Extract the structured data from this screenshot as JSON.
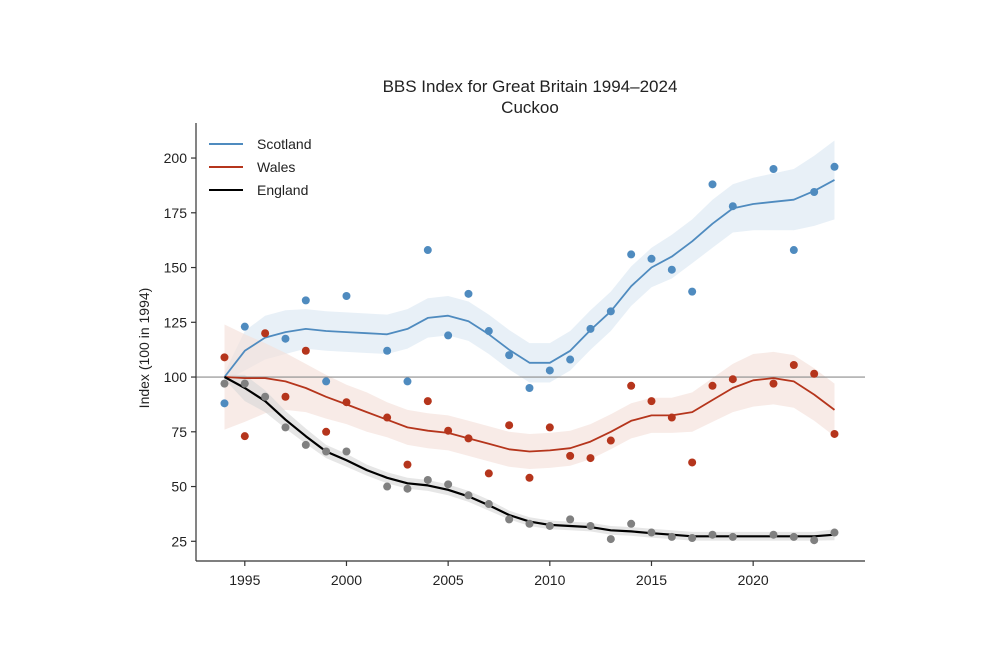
{
  "chart_data": {
    "type": "line",
    "title": "BBS Index for Great Britain 1994–2024",
    "subtitle": "Cuckoo",
    "xlabel": "",
    "ylabel": "Index (100 in 1994)",
    "xlim": [
      1992.6,
      2025.5
    ],
    "ylim": [
      16,
      216
    ],
    "xticks": [
      1995,
      2000,
      2005,
      2010,
      2015,
      2020
    ],
    "yticks": [
      25,
      50,
      75,
      100,
      125,
      150,
      175,
      200
    ],
    "reference_line": 100,
    "grid": false,
    "legend_position": "top-left",
    "x": [
      1994,
      1995,
      1996,
      1997,
      1998,
      1999,
      2000,
      2001,
      2002,
      2003,
      2004,
      2005,
      2006,
      2007,
      2008,
      2009,
      2010,
      2011,
      2012,
      2013,
      2014,
      2015,
      2016,
      2017,
      2018,
      2019,
      2020,
      2021,
      2022,
      2023,
      2024
    ],
    "series": [
      {
        "name": "Scotland",
        "color": "#4f8bbf",
        "band_color": "#dce8f3",
        "trend": [
          100,
          112,
          118,
          120.5,
          122,
          121,
          120.5,
          120,
          119.5,
          122,
          127,
          128,
          125.5,
          119.5,
          112.5,
          106.5,
          106.5,
          112,
          121.5,
          130,
          141.5,
          150,
          155,
          162,
          170,
          177,
          179,
          180,
          181,
          185,
          190
        ],
        "ci_halfwidth": [
          2,
          9,
          10,
          10,
          9,
          9,
          9,
          9,
          9,
          9,
          9,
          9,
          9,
          9,
          9,
          9,
          9,
          9,
          9,
          9,
          9,
          9,
          10,
          10,
          11,
          11,
          12,
          13,
          14,
          16,
          18
        ],
        "points": {
          "years": [
            1994,
            1995,
            1997,
            1998,
            1999,
            2000,
            2002,
            2003,
            2004,
            2005,
            2006,
            2007,
            2008,
            2009,
            2010,
            2011,
            2012,
            2013,
            2014,
            2015,
            2016,
            2017,
            2018,
            2019,
            2021,
            2022,
            2023,
            2024
          ],
          "values": [
            88,
            123,
            117.5,
            135,
            98,
            137,
            112,
            98,
            158,
            119,
            138,
            121,
            110,
            95,
            103,
            108,
            122,
            130,
            156,
            154,
            149,
            139,
            188,
            178,
            195,
            158,
            184.5,
            196
          ]
        }
      },
      {
        "name": "Wales",
        "color": "#b5351c",
        "band_color": "#f5e0da",
        "trend": [
          100,
          99.5,
          99.5,
          98,
          95,
          91,
          87.5,
          84,
          80.5,
          77,
          75.5,
          74.5,
          72,
          69.5,
          67,
          66,
          66.5,
          67.5,
          70.5,
          75,
          80,
          82.5,
          82.5,
          84,
          89.5,
          95,
          98.5,
          99.5,
          98,
          92,
          85
        ],
        "ci_halfwidth": [
          24,
          20,
          16,
          13,
          11,
          10,
          9,
          9,
          8,
          8,
          8,
          8,
          8,
          8,
          8,
          8,
          8,
          8,
          8,
          8,
          8,
          8,
          8,
          9,
          10,
          11,
          12,
          12,
          12,
          12,
          12
        ],
        "points": {
          "years": [
            1994,
            1995,
            1996,
            1997,
            1998,
            1999,
            2000,
            2002,
            2003,
            2004,
            2005,
            2006,
            2007,
            2008,
            2009,
            2010,
            2011,
            2012,
            2013,
            2014,
            2015,
            2016,
            2017,
            2018,
            2019,
            2021,
            2022,
            2023,
            2024
          ],
          "values": [
            109,
            73,
            120,
            91,
            112,
            75,
            88.5,
            81.5,
            60,
            89,
            75.5,
            72,
            56,
            78,
            54,
            77,
            64,
            63,
            71,
            96,
            89,
            81.5,
            61,
            96,
            99,
            97,
            105.5,
            101.5,
            74
          ]
        }
      },
      {
        "name": "England",
        "color": "#000000",
        "band_color": "#d9d9d9",
        "point_color": "#808080",
        "trend": [
          100,
          95,
          89,
          80.5,
          73,
          66,
          62,
          57.5,
          54,
          51.5,
          50.5,
          48.5,
          45.5,
          41.5,
          37,
          34,
          32.5,
          32,
          31.5,
          30,
          29.5,
          28.7,
          28,
          27.3,
          27.3,
          27.3,
          27.3,
          27.3,
          27.3,
          27.3,
          28
        ],
        "ci_halfwidth": [
          1,
          6,
          5,
          4,
          3.5,
          3,
          3,
          2.5,
          2.5,
          2.5,
          2.5,
          2.5,
          2.5,
          2.5,
          2,
          2,
          2,
          2,
          2,
          2,
          2,
          2,
          2,
          2,
          2,
          2,
          2,
          2,
          2,
          2,
          2.5
        ],
        "points": {
          "years": [
            1994,
            1995,
            1996,
            1997,
            1998,
            1999,
            2000,
            2002,
            2003,
            2004,
            2005,
            2006,
            2007,
            2008,
            2009,
            2010,
            2011,
            2012,
            2013,
            2014,
            2015,
            2016,
            2017,
            2018,
            2019,
            2021,
            2022,
            2023,
            2024
          ],
          "values": [
            97,
            97,
            91,
            77,
            69,
            66,
            66,
            50,
            49,
            53,
            51,
            46,
            42,
            35,
            33,
            32,
            35,
            32,
            26,
            33,
            29,
            27,
            26.5,
            28,
            27,
            28,
            27,
            25.5,
            29
          ]
        }
      }
    ]
  }
}
